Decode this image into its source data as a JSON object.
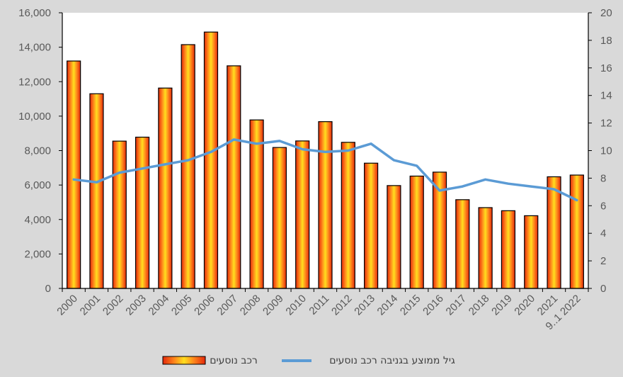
{
  "chart_data": {
    "type": "bar",
    "title": "",
    "categories": [
      "2000",
      "2001",
      "2002",
      "2003",
      "2004",
      "2005",
      "2006",
      "2007",
      "2008",
      "2009",
      "2010",
      "2011",
      "2012",
      "2013",
      "2014",
      "2015",
      "2016",
      "2017",
      "2018",
      "2019",
      "2020",
      "2021",
      "9..1 2022"
    ],
    "y_left": {
      "min": 0,
      "max": 16000,
      "step": 2000,
      "tick_labels": [
        "0",
        "2,000",
        "4,000",
        "6,000",
        "8,000",
        "10,000",
        "12,000",
        "14,000",
        "16,000"
      ]
    },
    "y_right": {
      "min": 0,
      "max": 20,
      "step": 2,
      "tick_labels": [
        "0",
        "2",
        "4",
        "6",
        "8",
        "10",
        "12",
        "14",
        "16",
        "18",
        "20"
      ]
    },
    "series": [
      {
        "name": "רכב נוסעים",
        "type": "bar",
        "axis": "left",
        "values": [
          13200,
          11300,
          8550,
          8780,
          11630,
          14150,
          14880,
          12920,
          9780,
          8180,
          8560,
          9680,
          8480,
          7270,
          5970,
          6520,
          6750,
          5150,
          4690,
          4510,
          4220,
          6480,
          6580
        ]
      },
      {
        "name": "גיל ממוצע בגניבה רכב נוסעים",
        "type": "line",
        "axis": "right",
        "color": "#5b9bd5",
        "values": [
          7.9,
          7.7,
          8.4,
          8.7,
          9.0,
          9.3,
          9.9,
          10.8,
          10.5,
          10.7,
          10.1,
          9.9,
          10.0,
          10.5,
          9.3,
          8.9,
          7.1,
          7.4,
          7.9,
          7.6,
          7.4,
          7.2,
          6.4
        ]
      }
    ],
    "legend": {
      "position": "bottom"
    },
    "grid": false
  },
  "colors": {
    "background": "#d9d9d9",
    "plot_background": "#ffffff",
    "bar_edge": "#000000",
    "bar_outer": "#e3280c",
    "bar_mid": "#ff8a1c",
    "bar_center": "#ffde1f",
    "line": "#5b9bd5"
  }
}
